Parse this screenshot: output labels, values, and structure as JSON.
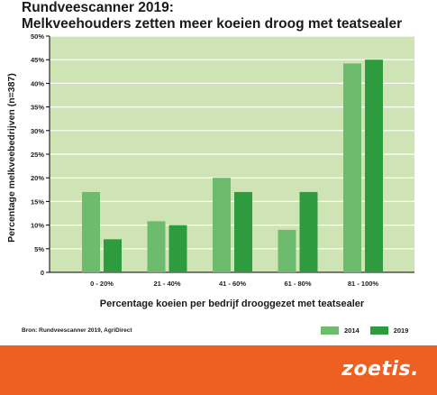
{
  "title": {
    "line1": "Rundveescanner 2019:",
    "line2": "Melkveehouders zetten meer koeien droog met teatsealer"
  },
  "source": "Bron: Rundveescanner 2019, AgriDirect",
  "logo": "zoetis.",
  "colors": {
    "plot_bg": "#cfe4b5",
    "grid": "#ffffff",
    "series_2014": "#6dbb6d",
    "series_2019": "#2e9b3f",
    "footer": "#ef6020"
  },
  "chart_data": {
    "type": "bar",
    "title": "Melkveehouders zetten meer koeien droog met teatsealer",
    "xlabel": "Percentage koeien per bedrijf drooggezet met teatsealer",
    "ylabel": "Percentage melkveebedrijven (n=387)",
    "categories": [
      "0 - 20%",
      "21 - 40%",
      "41 - 60%",
      "61 - 80%",
      "81 - 100%"
    ],
    "series": [
      {
        "name": "2014",
        "values": [
          17,
          10.8,
          20,
          9,
          44.2
        ]
      },
      {
        "name": "2019",
        "values": [
          7,
          10,
          17,
          17,
          45
        ]
      }
    ],
    "ylim": [
      0,
      50
    ],
    "yticks": [
      "0",
      "5%",
      "10%",
      "15%",
      "20%",
      "25%",
      "30%",
      "35%",
      "40%",
      "45%",
      "50%"
    ],
    "grid": true,
    "legend": "bottom-right"
  }
}
